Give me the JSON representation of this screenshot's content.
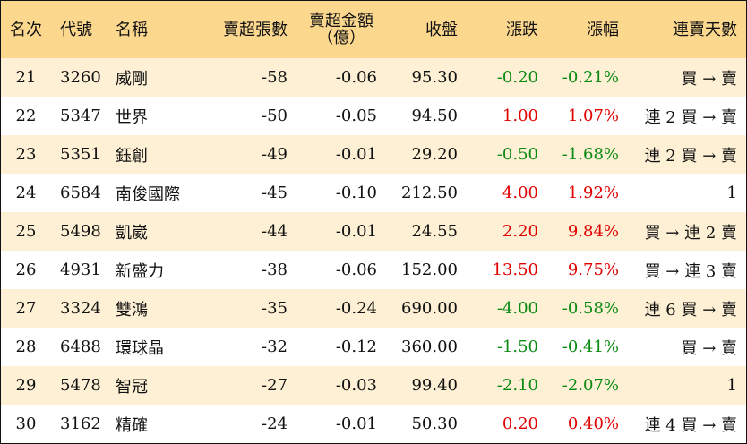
{
  "columns": {
    "rank": "名次",
    "code": "代號",
    "name": "名稱",
    "net_sell_qty": "賣超張數",
    "net_sell_amount_line1": "賣超金額",
    "net_sell_amount_line2": "（億）",
    "close": "收盤",
    "change": "漲跌",
    "change_pct": "漲幅",
    "consecutive_days": "連賣天數"
  },
  "colors": {
    "header_bg": "#fcd88f",
    "stripe_bg": "#fdf0d5",
    "up": "#e00000",
    "down": "#0b8a12"
  },
  "rows": [
    {
      "rank": "21",
      "code": "3260",
      "name": "威剛",
      "qty": "-58",
      "amount": "-0.06",
      "close": "95.30",
      "change": "-0.20",
      "pct": "-0.21%",
      "days": "買 → 賣",
      "trend": "down"
    },
    {
      "rank": "22",
      "code": "5347",
      "name": "世界",
      "qty": "-50",
      "amount": "-0.05",
      "close": "94.50",
      "change": "1.00",
      "pct": "1.07%",
      "days": "連 2 買 → 賣",
      "trend": "up"
    },
    {
      "rank": "23",
      "code": "5351",
      "name": "鈺創",
      "qty": "-49",
      "amount": "-0.01",
      "close": "29.20",
      "change": "-0.50",
      "pct": "-1.68%",
      "days": "連 2 買 → 賣",
      "trend": "down"
    },
    {
      "rank": "24",
      "code": "6584",
      "name": "南俊國際",
      "qty": "-45",
      "amount": "-0.10",
      "close": "212.50",
      "change": "4.00",
      "pct": "1.92%",
      "days": "1",
      "trend": "up"
    },
    {
      "rank": "25",
      "code": "5498",
      "name": "凱崴",
      "qty": "-44",
      "amount": "-0.01",
      "close": "24.55",
      "change": "2.20",
      "pct": "9.84%",
      "days": "買 → 連 2 賣",
      "trend": "up"
    },
    {
      "rank": "26",
      "code": "4931",
      "name": "新盛力",
      "qty": "-38",
      "amount": "-0.06",
      "close": "152.00",
      "change": "13.50",
      "pct": "9.75%",
      "days": "買 → 連 3 賣",
      "trend": "up"
    },
    {
      "rank": "27",
      "code": "3324",
      "name": "雙鴻",
      "qty": "-35",
      "amount": "-0.24",
      "close": "690.00",
      "change": "-4.00",
      "pct": "-0.58%",
      "days": "連 6 買 → 賣",
      "trend": "down"
    },
    {
      "rank": "28",
      "code": "6488",
      "name": "環球晶",
      "qty": "-32",
      "amount": "-0.12",
      "close": "360.00",
      "change": "-1.50",
      "pct": "-0.41%",
      "days": "買 → 賣",
      "trend": "down"
    },
    {
      "rank": "29",
      "code": "5478",
      "name": "智冠",
      "qty": "-27",
      "amount": "-0.03",
      "close": "99.40",
      "change": "-2.10",
      "pct": "-2.07%",
      "days": "1",
      "trend": "down"
    },
    {
      "rank": "30",
      "code": "3162",
      "name": "精確",
      "qty": "-24",
      "amount": "-0.01",
      "close": "50.30",
      "change": "0.20",
      "pct": "0.40%",
      "days": "連 4 買 → 賣",
      "trend": "up"
    }
  ]
}
